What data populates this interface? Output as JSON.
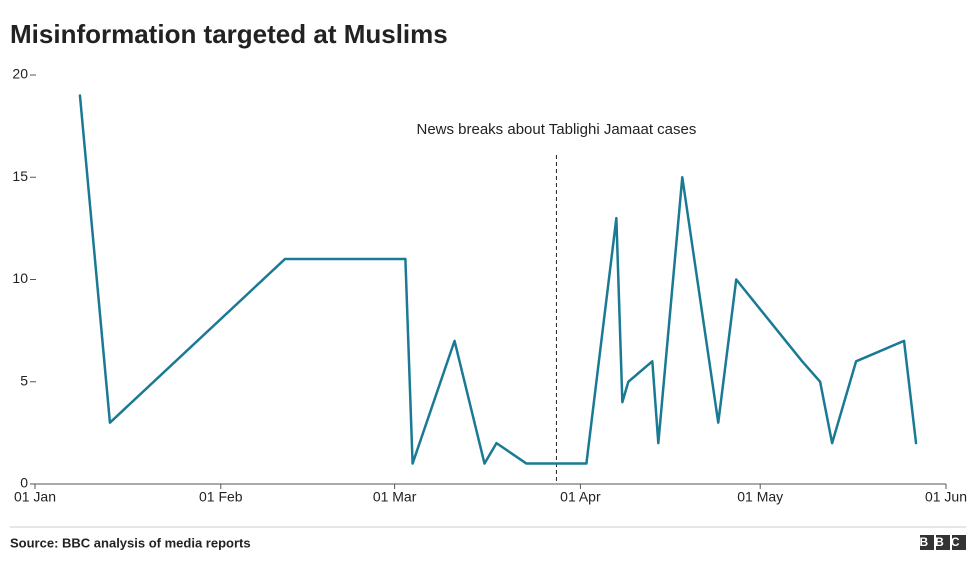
{
  "chart_data": {
    "type": "line",
    "title": "Misinformation targeted at Muslims",
    "x": [
      7.5,
      12.5,
      41.7,
      61.8,
      63,
      70,
      75,
      77,
      82,
      92,
      97,
      98,
      99,
      103,
      104,
      108,
      114,
      117,
      128,
      131,
      133,
      137,
      145,
      147
    ],
    "series": [
      {
        "name": "Misinformation",
        "color": "#1a7a94",
        "values": [
          19,
          3,
          11,
          11,
          1,
          7,
          1,
          2,
          1,
          1,
          13,
          4,
          5,
          6,
          2,
          15,
          3,
          10,
          6,
          5,
          2,
          6,
          7,
          2
        ]
      }
    ],
    "xlim": [
      0,
      152
    ],
    "xticks": [
      {
        "value": 0,
        "label": "01 Jan"
      },
      {
        "value": 31,
        "label": "01 Feb"
      },
      {
        "value": 60,
        "label": "01 Mar"
      },
      {
        "value": 91,
        "label": "01 Apr"
      },
      {
        "value": 121,
        "label": "01 May"
      },
      {
        "value": 152,
        "label": "01 Jun"
      }
    ],
    "ylim": [
      0,
      20
    ],
    "yticks": [
      0,
      5,
      10,
      15,
      20
    ],
    "annotation": {
      "text": "News breaks about Tablighi Jamaat cases",
      "x": 87
    },
    "source": "Source: BBC analysis of media reports",
    "logo": "BBC"
  }
}
